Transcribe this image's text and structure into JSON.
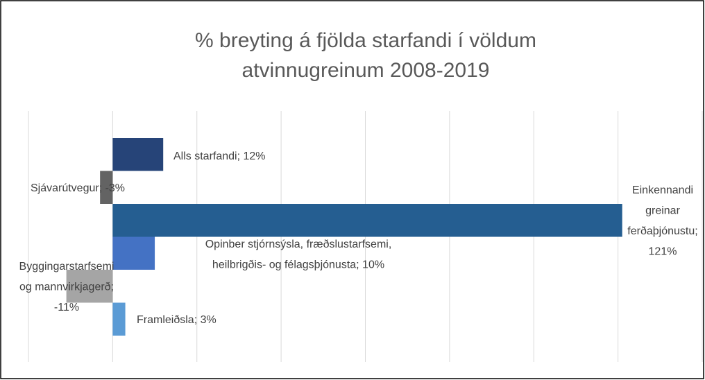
{
  "chart_data": {
    "type": "bar",
    "orientation": "horizontal",
    "title": "% breyting á fjölda starfandi í völdum atvinnugreinum 2008-2019",
    "values": [
      12,
      -3,
      121,
      10,
      -11,
      3
    ],
    "value_labels": [
      "Alls starfandi; 12%",
      "Sjávarútvegur; -3%",
      "Einkennandi greinar ferðaþjónustu; 121%",
      "Opinber stjórnsýsla, fræðslustarfsemi, heilbrigðis- og félagsþjónusta; 10%",
      "Byggingarstarfsemi og mannvirkjagerð; -11%",
      "Framleiðsla; 3%"
    ],
    "colors": [
      "#264478",
      "#636363",
      "#255e91",
      "#4472c4",
      "#a5a5a5",
      "#5b9bd5"
    ],
    "xlim": [
      -20,
      140
    ],
    "xticks": [
      -20,
      0,
      20,
      40,
      60,
      80,
      100,
      120,
      140
    ],
    "grid": true
  }
}
